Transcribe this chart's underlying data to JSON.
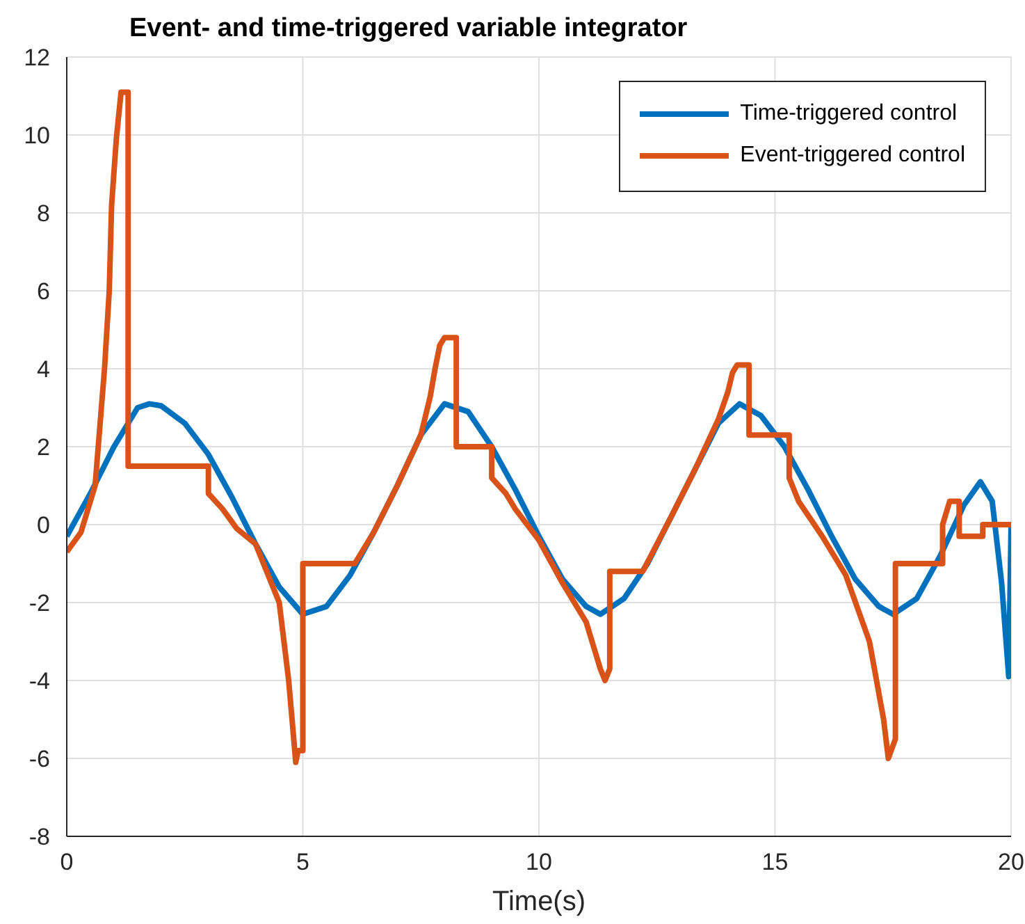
{
  "chart_data": {
    "type": "line",
    "title": "Event- and time-triggered variable integrator",
    "xlabel": "Time(s)",
    "xlim": [
      0,
      20
    ],
    "xticks": [
      0,
      5,
      10,
      15,
      20
    ],
    "ylim": [
      -8,
      12
    ],
    "yticks": [
      -8,
      -6,
      -4,
      -2,
      0,
      2,
      4,
      6,
      8,
      10,
      12
    ],
    "grid": true,
    "legend": "top right",
    "marker": "none",
    "line_style": "solid",
    "series": [
      {
        "name": "Time-triggered control",
        "color": "#0072bd",
        "x": [
          0,
          0.5,
          1.0,
          1.5,
          1.75,
          2.0,
          2.5,
          3.0,
          3.5,
          4.0,
          4.5,
          5.0,
          5.5,
          6.0,
          6.5,
          7.0,
          7.5,
          8.0,
          8.5,
          9.0,
          9.5,
          10.0,
          10.5,
          11.0,
          11.3,
          11.8,
          12.3,
          12.8,
          13.3,
          13.8,
          14.25,
          14.7,
          15.2,
          15.7,
          16.2,
          16.7,
          17.2,
          17.5,
          18.0,
          18.5,
          19.0,
          19.35,
          19.6,
          19.8,
          19.95,
          20
        ],
        "values": [
          -0.3,
          0.8,
          2.0,
          3.0,
          3.1,
          3.05,
          2.6,
          1.8,
          0.7,
          -0.5,
          -1.6,
          -2.3,
          -2.1,
          -1.3,
          -0.2,
          1.0,
          2.3,
          3.1,
          2.9,
          2.0,
          0.9,
          -0.3,
          -1.4,
          -2.1,
          -2.3,
          -1.9,
          -1.0,
          0.2,
          1.4,
          2.6,
          3.1,
          2.8,
          2.0,
          0.9,
          -0.3,
          -1.4,
          -2.1,
          -2.3,
          -1.9,
          -0.8,
          0.5,
          1.1,
          0.6,
          -1.5,
          -3.9,
          0
        ]
      },
      {
        "name": "Event-triggered control",
        "color": "#d95319",
        "x": [
          0,
          0.3,
          0.6,
          0.8,
          0.9,
          0.95,
          1.05,
          1.15,
          1.3,
          1.3,
          3.0,
          3.0,
          3.3,
          3.6,
          4.0,
          4.5,
          4.7,
          4.85,
          4.9,
          5.0,
          5.0,
          6.1,
          6.5,
          7.0,
          7.5,
          7.7,
          7.8,
          7.9,
          8.0,
          8.25,
          8.25,
          9.0,
          9.0,
          9.3,
          9.5,
          10.0,
          10.5,
          11.0,
          11.3,
          11.4,
          11.5,
          11.5,
          12.2,
          12.8,
          13.3,
          13.8,
          14.0,
          14.1,
          14.2,
          14.45,
          14.45,
          15.3,
          15.3,
          15.5,
          16.0,
          16.5,
          17.0,
          17.3,
          17.4,
          17.55,
          17.55,
          18.55,
          18.55,
          18.7,
          18.9,
          18.9,
          19.4,
          19.4,
          20
        ],
        "values": [
          -0.7,
          -0.2,
          1.0,
          4.0,
          6.0,
          8.2,
          9.9,
          11.1,
          11.1,
          1.5,
          1.5,
          0.8,
          0.4,
          -0.1,
          -0.5,
          -2.0,
          -4.0,
          -6.1,
          -5.8,
          -5.8,
          -1.0,
          -1.0,
          -0.2,
          1.0,
          2.3,
          3.3,
          4.0,
          4.6,
          4.8,
          4.8,
          2.0,
          2.0,
          1.2,
          0.8,
          0.4,
          -0.4,
          -1.5,
          -2.5,
          -3.7,
          -4.0,
          -3.7,
          -1.2,
          -1.2,
          0.2,
          1.4,
          2.7,
          3.4,
          3.9,
          4.1,
          4.1,
          2.3,
          2.3,
          1.2,
          0.6,
          -0.3,
          -1.3,
          -3.0,
          -5.0,
          -6.0,
          -5.5,
          -1.0,
          -1.0,
          0.0,
          0.6,
          0.6,
          -0.3,
          -0.3,
          0.0,
          0.0
        ]
      }
    ]
  }
}
